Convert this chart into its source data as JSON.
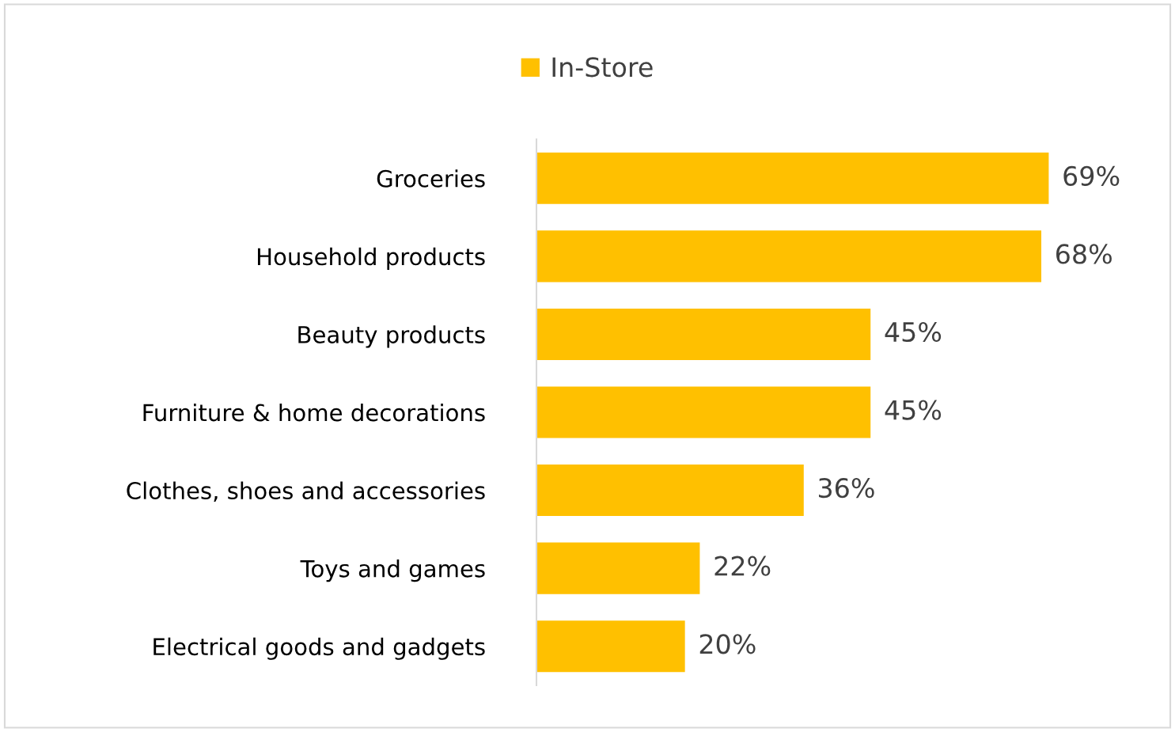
{
  "chart_data": {
    "type": "bar",
    "orientation": "horizontal",
    "categories": [
      "Groceries",
      "Household products",
      "Beauty products",
      "Furniture & home decorations",
      "Clothes, shoes and accessories",
      "Toys and games",
      "Electrical goods and gadgets"
    ],
    "series": [
      {
        "name": "In-Store",
        "color": "#ffc000",
        "values": [
          69,
          68,
          45,
          45,
          36,
          22,
          20
        ],
        "value_labels": [
          "69%",
          "68%",
          "45%",
          "45%",
          "36%",
          "22%",
          "20%"
        ]
      }
    ],
    "legend": "top",
    "grid": false,
    "tick_labels": "y"
  }
}
